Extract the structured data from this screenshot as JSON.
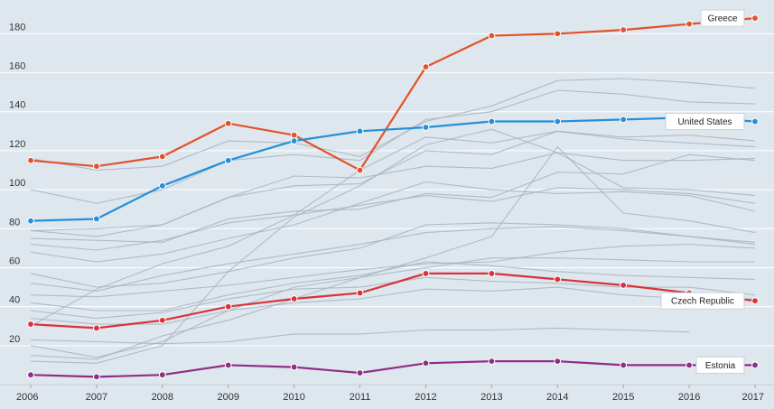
{
  "chart_data": {
    "type": "line",
    "title": "",
    "xlabel": "",
    "ylabel": "",
    "x": [
      2006,
      2007,
      2008,
      2009,
      2010,
      2011,
      2012,
      2013,
      2014,
      2015,
      2016,
      2017
    ],
    "ylim": [
      0,
      195
    ],
    "y_ticks": [
      20,
      40,
      60,
      80,
      100,
      120,
      140,
      160,
      180
    ],
    "grid": true,
    "legend": "inline labels at right end of highlighted lines",
    "colors": {
      "background": "#dfe7ee",
      "grid": "#ffffff",
      "greece": "#e2522b",
      "united_states": "#2490d8",
      "czech_republic": "#d9323a",
      "estonia": "#8e2e86",
      "context": "#a6b3bf"
    },
    "highlighted_series": [
      {
        "name": "Greece",
        "key": "greece",
        "values": [
          115,
          112,
          117,
          134,
          128,
          110,
          163,
          179,
          180,
          182,
          185,
          188
        ]
      },
      {
        "name": "United States",
        "key": "united_states",
        "values": [
          84,
          85,
          102,
          115,
          125,
          130,
          132,
          135,
          135,
          136,
          137,
          135
        ]
      },
      {
        "name": "Czech Republic",
        "key": "czech_republic",
        "values": [
          31,
          29,
          33,
          40,
          44,
          47,
          57,
          57,
          54,
          51,
          47,
          43
        ]
      },
      {
        "name": "Estonia",
        "key": "estonia",
        "values": [
          5,
          4,
          5,
          10,
          9,
          6,
          11,
          12,
          12,
          10,
          10,
          10
        ]
      }
    ],
    "context_series": [
      [
        116,
        110,
        112,
        125,
        124,
        117,
        135,
        143,
        156,
        157,
        155,
        152
      ],
      [
        100,
        93,
        100,
        115,
        118,
        115,
        136,
        140,
        151,
        149,
        145,
        144
      ],
      [
        79,
        80,
        82,
        96,
        102,
        103,
        120,
        118,
        130,
        127,
        128,
        125
      ],
      [
        79,
        76,
        82,
        96,
        107,
        106,
        112,
        111,
        119,
        115,
        115,
        116
      ],
      [
        75,
        74,
        73,
        85,
        89,
        90,
        98,
        96,
        109,
        108,
        118,
        115
      ],
      [
        72,
        69,
        74,
        83,
        87,
        92,
        97,
        94,
        101,
        100,
        98,
        93
      ],
      [
        68,
        63,
        67,
        75,
        82,
        93,
        104,
        100,
        98,
        99,
        97,
        89
      ],
      [
        57,
        50,
        52,
        58,
        65,
        70,
        82,
        83,
        82,
        80,
        76,
        73
      ],
      [
        52,
        48,
        56,
        62,
        67,
        72,
        78,
        80,
        81,
        79,
        76,
        72
      ],
      [
        46,
        45,
        48,
        51,
        55,
        59,
        62,
        63,
        68,
        71,
        72,
        70
      ],
      [
        42,
        38,
        38,
        46,
        52,
        56,
        63,
        61,
        58,
        56,
        55,
        54
      ],
      [
        38,
        34,
        37,
        44,
        49,
        50,
        55,
        53,
        52,
        50,
        50,
        46
      ],
      [
        34,
        31,
        31,
        38,
        42,
        44,
        49,
        48,
        50,
        46,
        44,
        44
      ],
      [
        23,
        22,
        21,
        22,
        26,
        26,
        28,
        28,
        29,
        28,
        27,
        null
      ],
      [
        15,
        13,
        25,
        33,
        44,
        55,
        65,
        76,
        122,
        88,
        84,
        78
      ],
      [
        12,
        11,
        20,
        58,
        86,
        102,
        123,
        131,
        119,
        101,
        100,
        97
      ],
      [
        30,
        49,
        62,
        71,
        87,
        110,
        127,
        124,
        130,
        126,
        124,
        122
      ],
      [
        20,
        14,
        22,
        38,
        50,
        55,
        60,
        65,
        65,
        64,
        63,
        63
      ]
    ]
  }
}
